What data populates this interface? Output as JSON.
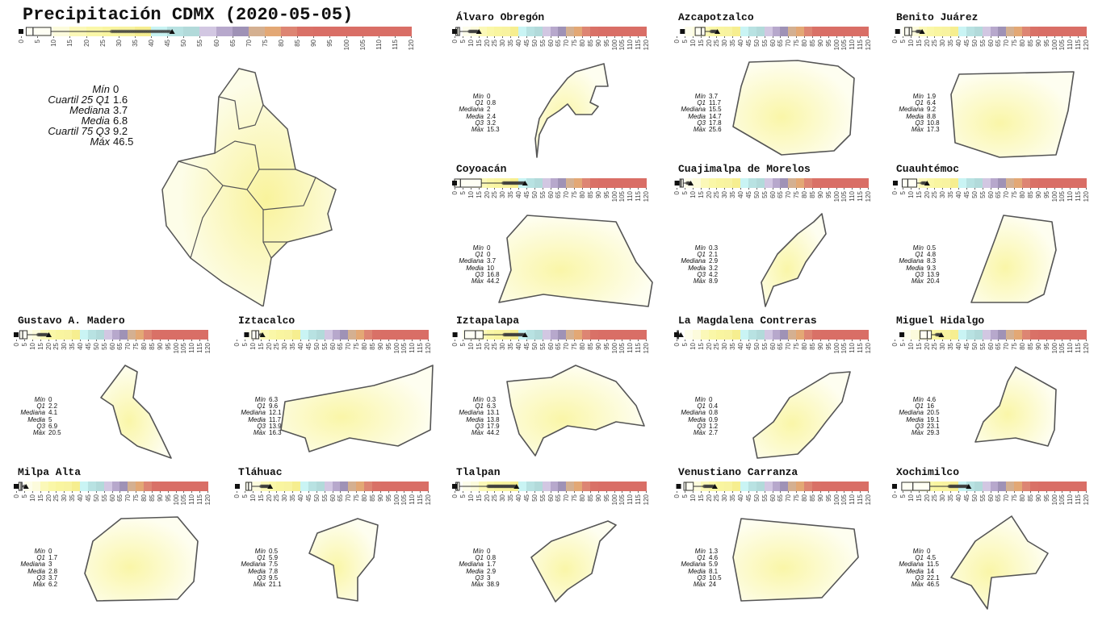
{
  "title": "Precipitación CDMX (2020-05-05)",
  "chart_data": {
    "type": "boxplot-map-grid",
    "title": "Precipitación CDMX (2020-05-05)",
    "scale": {
      "min": 0,
      "max": 120,
      "step": 5,
      "ticks": [
        "0",
        "5",
        "10",
        "15",
        "20",
        "25",
        "30",
        "35",
        "40",
        "45",
        "50",
        "55",
        "60",
        "65",
        "70",
        "75",
        "80",
        "85",
        "90",
        "95",
        "100",
        "105",
        "110",
        "115",
        "120"
      ],
      "colors": [
        "#ffffff",
        "#fdfdeb",
        "#fcfbdc",
        "#fbf8b8",
        "#faf7a8",
        "#f9f5a0",
        "#f8f3a0",
        "#f6ee90",
        "#c9f4f4",
        "#b8e2e2",
        "#b2dada",
        "#d2c7e2",
        "#b7a8cc",
        "#9f92b6",
        "#d4b091",
        "#e3a875",
        "#dd8573",
        "#d97167",
        "#d96e66",
        "#d96e66",
        "#d96e66",
        "#d96e66",
        "#d96e66",
        "#d96e66"
      ]
    },
    "main_labels": [
      "Mín",
      "Cuartil 25 Q1",
      "Mediana",
      "Media",
      "Cuartil 75 Q3",
      "Máx"
    ],
    "labels": [
      "Mín",
      "Q1",
      "Mediana",
      "Media",
      "Q3",
      "Máx"
    ],
    "overall": {
      "stats": [
        "0",
        "1.6",
        "3.7",
        "6.8",
        "9.2",
        "46.5"
      ],
      "values": [
        0,
        1.6,
        3.7,
        6.8,
        9.2,
        46.5
      ]
    },
    "boroughs": [
      {
        "name": "Álvaro Obregón",
        "stats": [
          "0",
          "0.8",
          "2",
          "2.4",
          "3.2",
          "15.3"
        ],
        "values": [
          0,
          0.8,
          2,
          2.4,
          3.2,
          15.3
        ]
      },
      {
        "name": "Azcapotzalco",
        "stats": [
          "3.7",
          "11.7",
          "15.5",
          "14.7",
          "17.8",
          "25.6"
        ],
        "values": [
          3.7,
          11.7,
          15.5,
          14.7,
          17.8,
          25.6
        ]
      },
      {
        "name": "Benito Juárez",
        "stats": [
          "1.9",
          "6.4",
          "9.2",
          "8.8",
          "10.8",
          "17.3"
        ],
        "values": [
          1.9,
          6.4,
          9.2,
          8.8,
          10.8,
          17.3
        ]
      },
      {
        "name": "Coyoacán",
        "stats": [
          "0",
          "0",
          "3.7",
          "10",
          "16.8",
          "44.2"
        ],
        "values": [
          0,
          0,
          3.7,
          10,
          16.8,
          44.2
        ]
      },
      {
        "name": "Cuajimalpa de Morelos",
        "stats": [
          "0.3",
          "2.1",
          "2.9",
          "3.2",
          "4.2",
          "8.9"
        ],
        "values": [
          0.3,
          2.1,
          2.9,
          3.2,
          4.2,
          8.9
        ]
      },
      {
        "name": "Cuauhtémoc",
        "stats": [
          "0.5",
          "4.8",
          "8.3",
          "9.3",
          "13.9",
          "20.4"
        ],
        "values": [
          0.5,
          4.8,
          8.3,
          9.3,
          13.9,
          20.4
        ]
      },
      {
        "name": "Gustavo A. Madero",
        "stats": [
          "0",
          "2.2",
          "4.1",
          "5",
          "6.9",
          "20.5"
        ],
        "values": [
          0,
          2.2,
          4.1,
          5,
          6.9,
          20.5
        ]
      },
      {
        "name": "Iztacalco",
        "stats": [
          "6.3",
          "9.6",
          "12.1",
          "11.7",
          "13.9",
          "16.3"
        ],
        "values": [
          6.3,
          9.6,
          12.1,
          11.7,
          13.9,
          16.3
        ]
      },
      {
        "name": "Iztapalapa",
        "stats": [
          "0.3",
          "6.3",
          "13.1",
          "13.8",
          "17.9",
          "44.2"
        ],
        "values": [
          0.3,
          6.3,
          13.1,
          13.8,
          17.9,
          44.2
        ]
      },
      {
        "name": "La Magdalena Contreras",
        "stats": [
          "0",
          "0.4",
          "0.8",
          "0.9",
          "1.2",
          "2.7"
        ],
        "values": [
          0,
          0.4,
          0.8,
          0.9,
          1.2,
          2.7
        ]
      },
      {
        "name": "Miguel Hidalgo",
        "stats": [
          "4.6",
          "16",
          "20.5",
          "19.1",
          "23.1",
          "29.3"
        ],
        "values": [
          4.6,
          16,
          20.5,
          19.1,
          23.1,
          29.3
        ]
      },
      {
        "name": "Milpa Alta",
        "stats": [
          "0",
          "1.7",
          "3",
          "2.8",
          "3.7",
          "6.2"
        ],
        "values": [
          0,
          1.7,
          3,
          2.8,
          3.7,
          6.2
        ]
      },
      {
        "name": "Tláhuac",
        "stats": [
          "0.5",
          "5.9",
          "7.5",
          "7.8",
          "9.5",
          "21.1"
        ],
        "values": [
          0.5,
          5.9,
          7.5,
          7.8,
          9.5,
          21.1
        ]
      },
      {
        "name": "Tlalpan",
        "stats": [
          "0",
          "0.8",
          "1.7",
          "2.9",
          "3",
          "38.9"
        ],
        "values": [
          0,
          0.8,
          1.7,
          2.9,
          3,
          38.9
        ]
      },
      {
        "name": "Venustiano Carranza",
        "stats": [
          "1.3",
          "4.6",
          "5.9",
          "8.1",
          "10.5",
          "24"
        ],
        "values": [
          1.3,
          4.6,
          5.9,
          8.1,
          10.5,
          24
        ]
      },
      {
        "name": "Xochimilco",
        "stats": [
          "0",
          "4.5",
          "11.5",
          "14",
          "22.1",
          "46.5"
        ],
        "values": [
          0,
          4.5,
          11.5,
          14,
          22.1,
          46.5
        ]
      }
    ]
  }
}
